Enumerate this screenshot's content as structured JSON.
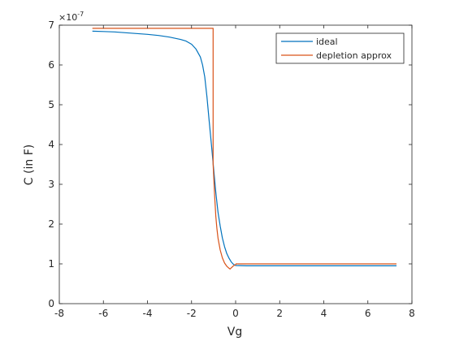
{
  "chart_data": {
    "type": "line",
    "xlabel": "Vg",
    "ylabel": "C (in F)",
    "y_exponent_label": "×10",
    "y_exponent_power": "-7",
    "xlim": [
      -8,
      8
    ],
    "ylim": [
      0,
      7
    ],
    "x_ticks": [
      "-8",
      "-6",
      "-4",
      "-2",
      "0",
      "2",
      "4",
      "6",
      "8"
    ],
    "y_ticks": [
      "0",
      "1",
      "2",
      "3",
      "4",
      "5",
      "6",
      "7"
    ],
    "grid": false,
    "legend_position": "top-right",
    "series": [
      {
        "name": "ideal",
        "color": "#0072BD",
        "x": [
          -6.5,
          -6,
          -5.5,
          -5,
          -4.5,
          -4,
          -3.5,
          -3,
          -2.5,
          -2.25,
          -2,
          -1.8,
          -1.6,
          -1.5,
          -1.4,
          -1.3,
          -1.2,
          -1.1,
          -1.0,
          -0.9,
          -0.8,
          -0.7,
          -0.6,
          -0.5,
          -0.4,
          -0.3,
          -0.2,
          -0.1,
          0.0,
          0.5,
          1,
          2,
          3,
          4,
          5,
          6,
          7,
          7.3
        ],
        "y": [
          6.85,
          6.84,
          6.83,
          6.81,
          6.79,
          6.77,
          6.74,
          6.7,
          6.64,
          6.6,
          6.52,
          6.4,
          6.2,
          6.0,
          5.7,
          5.2,
          4.6,
          4.0,
          3.4,
          2.8,
          2.3,
          1.95,
          1.65,
          1.43,
          1.26,
          1.14,
          1.05,
          0.99,
          0.96,
          0.95,
          0.95,
          0.95,
          0.95,
          0.95,
          0.95,
          0.95,
          0.95,
          0.95
        ]
      },
      {
        "name": "depletion approx",
        "color": "#D95319",
        "x": [
          -6.5,
          -1.02,
          -1.02,
          -0.95,
          -0.9,
          -0.85,
          -0.8,
          -0.7,
          -0.6,
          -0.5,
          -0.4,
          -0.3,
          -0.25,
          -0.2,
          -0.1,
          0.0,
          0.02,
          0.5,
          1,
          2,
          3,
          4,
          5,
          6,
          7,
          7.3
        ],
        "y": [
          6.92,
          6.92,
          3.5,
          2.7,
          2.2,
          1.9,
          1.65,
          1.35,
          1.15,
          1.02,
          0.94,
          0.89,
          0.87,
          0.9,
          0.95,
          0.98,
          1.0,
          1.0,
          1.0,
          1.0,
          1.0,
          1.0,
          1.0,
          1.0,
          1.0,
          1.0
        ]
      }
    ]
  }
}
